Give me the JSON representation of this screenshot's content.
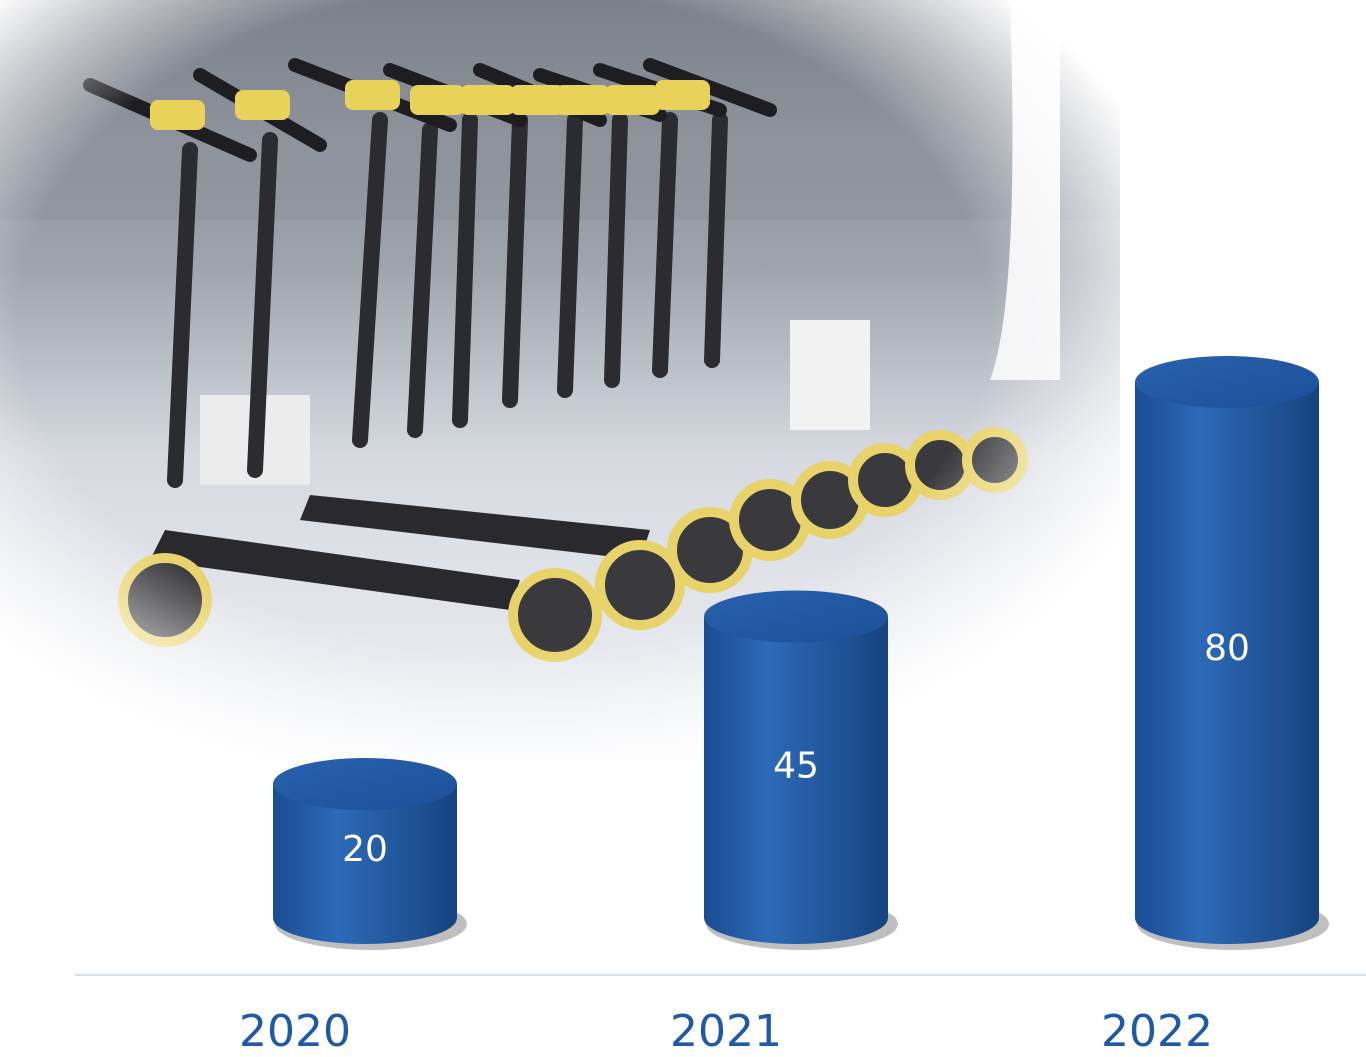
{
  "chart_data": {
    "type": "bar",
    "categories": [
      "2020",
      "2021",
      "2022"
    ],
    "values": [
      20,
      45,
      80
    ],
    "color": "#1f5aa6"
  }
}
